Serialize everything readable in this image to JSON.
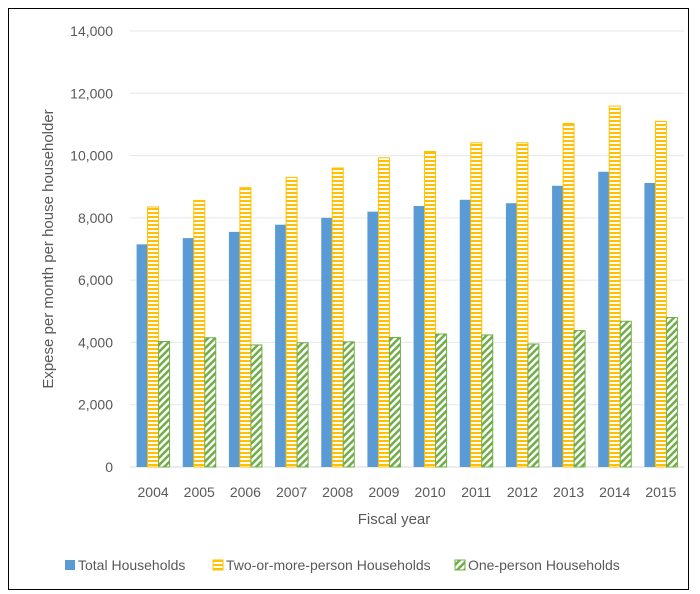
{
  "chart_data": {
    "type": "bar",
    "title": "",
    "xlabel": "Fiscal year",
    "ylabel": "Expese per month per house householder",
    "ylim": [
      0,
      14000
    ],
    "yticks": [
      0,
      2000,
      4000,
      6000,
      8000,
      10000,
      12000,
      14000
    ],
    "ytick_labels": [
      "0",
      "2,000",
      "4,000",
      "6,000",
      "8,000",
      "10,000",
      "12,000",
      "14,000"
    ],
    "categories": [
      "2004",
      "2005",
      "2006",
      "2007",
      "2008",
      "2009",
      "2010",
      "2011",
      "2012",
      "2013",
      "2014",
      "2015"
    ],
    "grid": true,
    "legend_position": "bottom",
    "series": [
      {
        "name": "Total Households",
        "color": "#5b9bd5",
        "pattern": "solid",
        "values": [
          7150,
          7350,
          7550,
          7780,
          8000,
          8200,
          8380,
          8580,
          8470,
          9030,
          9480,
          9120
        ]
      },
      {
        "name": "Two-or-more-person Households",
        "color": "#ffc000",
        "pattern": "horizontal-stripes",
        "values": [
          8350,
          8560,
          8970,
          9300,
          9600,
          9930,
          10130,
          10410,
          10410,
          11030,
          11590,
          11100
        ]
      },
      {
        "name": "One-person Households",
        "color": "#70ad47",
        "pattern": "diagonal-hatch",
        "values": [
          4030,
          4150,
          3920,
          3990,
          4020,
          4160,
          4270,
          4240,
          3950,
          4380,
          4680,
          4800
        ]
      }
    ]
  }
}
